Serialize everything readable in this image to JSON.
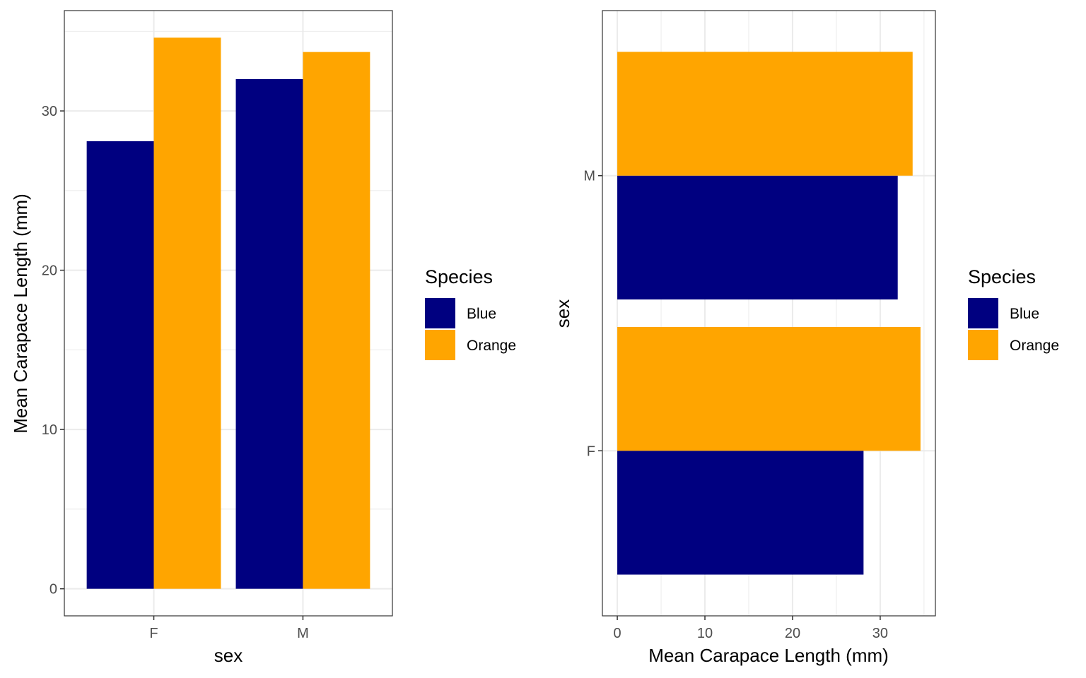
{
  "chart_data": [
    {
      "type": "bar",
      "orientation": "vertical",
      "categories": [
        "F",
        "M"
      ],
      "series": [
        {
          "name": "Blue",
          "color": "#000080",
          "values": [
            28.1,
            32.0
          ]
        },
        {
          "name": "Orange",
          "color": "#FFA500",
          "values": [
            34.6,
            33.7
          ]
        }
      ],
      "xlabel": "sex",
      "ylabel": "Mean Carapace Length (mm)",
      "ylim": [
        -1.7,
        36.3
      ],
      "yticks": [
        0,
        10,
        20,
        30
      ],
      "legend": {
        "title": "Species",
        "position": "right"
      },
      "grid": true
    },
    {
      "type": "bar",
      "orientation": "horizontal",
      "categories": [
        "F",
        "M"
      ],
      "series": [
        {
          "name": "Blue",
          "color": "#000080",
          "values": [
            28.1,
            32.0
          ]
        },
        {
          "name": "Orange",
          "color": "#FFA500",
          "values": [
            34.6,
            33.7
          ]
        }
      ],
      "xlabel": "Mean Carapace Length (mm)",
      "ylabel": "sex",
      "xlim": [
        -1.7,
        36.3
      ],
      "xticks": [
        0,
        10,
        20,
        30
      ],
      "legend": {
        "title": "Species",
        "position": "right"
      },
      "grid": true
    }
  ]
}
